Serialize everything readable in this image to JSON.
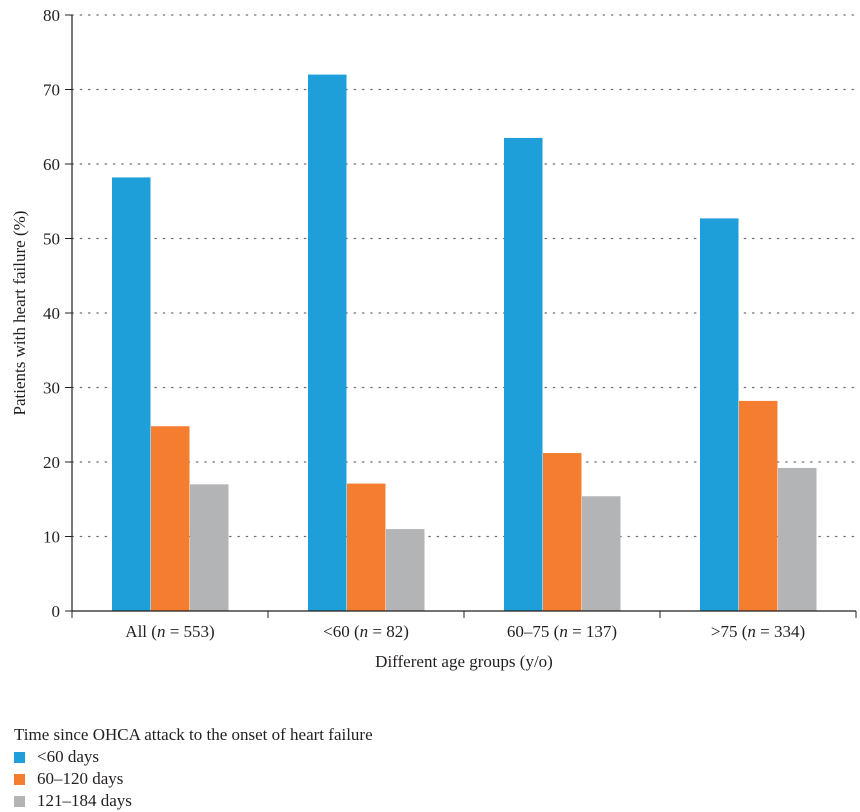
{
  "chart_data": {
    "type": "bar",
    "categories": [
      "All (n = 553)",
      "<60 (n = 82)",
      "60–75 (n = 137)",
      ">75 (n = 334)"
    ],
    "category_parts": [
      {
        "pre": "All (",
        "n": "n",
        "post": " = 553)"
      },
      {
        "pre": "<60 (",
        "n": "n",
        "post": " = 82)"
      },
      {
        "pre": "60–75 (",
        "n": "n",
        "post": " = 137)"
      },
      {
        "pre": ">75 (",
        "n": "n",
        "post": " = 334)"
      }
    ],
    "series": [
      {
        "name": "<60 days",
        "color": "#1f9fd9",
        "values": [
          58.2,
          72.0,
          63.5,
          52.7
        ]
      },
      {
        "name": "60–120 days",
        "color": "#f47d30",
        "values": [
          24.8,
          17.1,
          21.2,
          28.2
        ]
      },
      {
        "name": "121–184 days",
        "color": "#b3b4b6",
        "values": [
          17.0,
          11.0,
          15.4,
          19.2
        ]
      }
    ],
    "xlabel": "Different age groups (y/o)",
    "ylabel": "Patients with heart failure (%)",
    "ylim": [
      0,
      80
    ],
    "yticks": [
      0,
      10,
      20,
      30,
      40,
      50,
      60,
      70,
      80
    ],
    "grid": "horizontal dotted",
    "legend_title": "Time since OHCA attack to the onset of heart failure",
    "legend_position": "bottom-left"
  }
}
